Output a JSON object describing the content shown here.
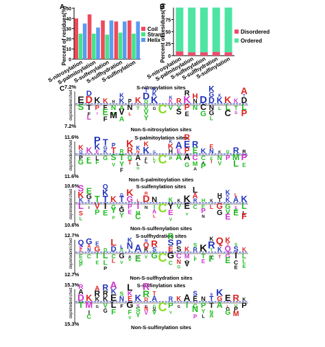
{
  "panels": {
    "a": {
      "label": "A"
    },
    "b": {
      "label": "B"
    },
    "c": {
      "label": "C"
    }
  },
  "chart_data": [
    {
      "type": "bar",
      "panel": "A",
      "ylabel": "Percent of residues(%)",
      "ylim": [
        0,
        50
      ],
      "yticks": [
        0,
        10,
        20,
        30,
        40,
        50
      ],
      "categories": [
        "S-nitrosylation",
        "S-palmitoylation",
        "S-sulfenylation",
        "S-sulfhydration",
        "S-sulfinylation"
      ],
      "series": [
        {
          "name": "Coil",
          "color": "#ef4b5b",
          "values": [
            40,
            44,
            38,
            37,
            38
          ]
        },
        {
          "name": "Strand",
          "color": "#45e488",
          "values": [
            25,
            25,
            24,
            26,
            25
          ]
        },
        {
          "name": "Helix",
          "color": "#5b9bf0",
          "values": [
            35,
            31,
            38,
            37,
            37
          ]
        }
      ],
      "legend": "right"
    },
    {
      "type": "bar",
      "panel": "B",
      "ylabel": "Percent of residues(%)",
      "ylim": [
        0,
        100
      ],
      "yticks": [
        0,
        25,
        50,
        75
      ],
      "categories": [
        "S-nitrosylation",
        "S-palmitoylation",
        "S-sulfenylation",
        "S-sulfhydration",
        "S-sulfinylation"
      ],
      "series": [
        {
          "name": "Disordered",
          "color": "#ee4b6e",
          "values": [
            9,
            7,
            7,
            8,
            7
          ]
        },
        {
          "name": "Ordered",
          "color": "#4ee5a4",
          "values": [
            91,
            93,
            93,
            92,
            93
          ]
        }
      ],
      "legend": "right"
    }
  ],
  "logos": [
    {
      "title": "S-nitrosylation sites",
      "non_title": "Non-S-nitrosylation sites",
      "percent": "7.2%",
      "enriched": "enriched",
      "depleted": "depleted",
      "seed": 3
    },
    {
      "title": "S-palmitoylation sites",
      "non_title": "Non-S-palmitoylation sites",
      "percent": "11.6%",
      "enriched": "enriched",
      "depleted": "depleted",
      "seed": 7
    },
    {
      "title": "S-sulfenylation sites",
      "non_title": "Non-S-sulfenylation sites",
      "percent": "10.6%",
      "enriched": "enriched",
      "depleted": "depleted",
      "seed": 11
    },
    {
      "title": "S-sulfhydration sites",
      "non_title": "Non-S-sulfhydration sites",
      "percent": "12.7%",
      "enriched": "enriched",
      "depleted": "depleted",
      "seed": 17
    },
    {
      "title": "S-sulfinylation sites",
      "non_title": "Non-S-sulfinylation sites",
      "percent": "15.3%",
      "enriched": "enriched",
      "depleted": "depleted",
      "seed": 23
    }
  ],
  "colors": {
    "basic": "#2233bb",
    "acidic": "#dd2222",
    "polar": "#22bb22",
    "hydrophobic": "#111111",
    "other": "#cc33cc",
    "center": "#88dd22"
  }
}
